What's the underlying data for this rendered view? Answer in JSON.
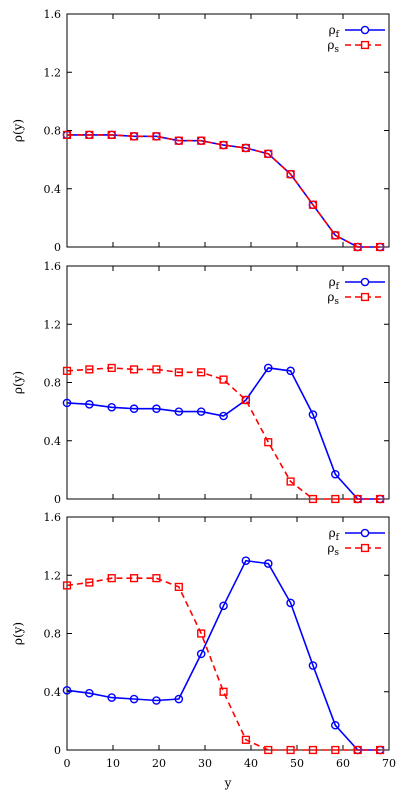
{
  "chart_data": [
    {
      "type": "line",
      "ylabel": "ρ(y)",
      "xlabel": "",
      "xlim": [
        0,
        70
      ],
      "ylim": [
        0,
        1.6
      ],
      "xticks": [
        0,
        10,
        20,
        30,
        40,
        50,
        60,
        70
      ],
      "yticks": [
        "0",
        "0.4",
        "0.8",
        "1.2",
        "1.6"
      ],
      "show_xticklabels": false,
      "grid": false,
      "legend_position": "top-right",
      "x": [
        0,
        4.86,
        9.72,
        14.58,
        19.44,
        24.31,
        29.17,
        34.03,
        38.89,
        43.75,
        48.61,
        53.47,
        58.33,
        63.19,
        68.06
      ],
      "series": [
        {
          "name": "ρf",
          "base": "ρ",
          "sub": "f",
          "color": "#0000ff",
          "marker": "circle",
          "dash": "solid",
          "values": [
            0.77,
            0.77,
            0.77,
            0.76,
            0.76,
            0.73,
            0.73,
            0.7,
            0.68,
            0.64,
            0.5,
            0.29,
            0.08,
            0.0,
            0.0
          ]
        },
        {
          "name": "ρs",
          "base": "ρ",
          "sub": "s",
          "color": "#ff0000",
          "marker": "square",
          "dash": "dashed",
          "values": [
            0.77,
            0.77,
            0.77,
            0.76,
            0.76,
            0.73,
            0.73,
            0.7,
            0.68,
            0.64,
            0.5,
            0.29,
            0.08,
            0.0,
            0.0
          ]
        }
      ]
    },
    {
      "type": "line",
      "ylabel": "ρ(y)",
      "xlabel": "",
      "xlim": [
        0,
        70
      ],
      "ylim": [
        0,
        1.6
      ],
      "xticks": [
        0,
        10,
        20,
        30,
        40,
        50,
        60,
        70
      ],
      "yticks": [
        "0",
        "0.4",
        "0.8",
        "1.2",
        "1.6"
      ],
      "show_xticklabels": false,
      "grid": false,
      "legend_position": "top-right",
      "x": [
        0,
        4.86,
        9.72,
        14.58,
        19.44,
        24.31,
        29.17,
        34.03,
        38.89,
        43.75,
        48.61,
        53.47,
        58.33,
        63.19,
        68.06
      ],
      "series": [
        {
          "name": "ρf",
          "base": "ρ",
          "sub": "f",
          "color": "#0000ff",
          "marker": "circle",
          "dash": "solid",
          "values": [
            0.66,
            0.65,
            0.63,
            0.62,
            0.62,
            0.6,
            0.6,
            0.57,
            0.68,
            0.9,
            0.88,
            0.58,
            0.17,
            0.0,
            0.0
          ]
        },
        {
          "name": "ρs",
          "base": "ρ",
          "sub": "s",
          "color": "#ff0000",
          "marker": "square",
          "dash": "dashed",
          "values": [
            0.88,
            0.89,
            0.9,
            0.89,
            0.89,
            0.87,
            0.87,
            0.82,
            0.68,
            0.39,
            0.12,
            0.0,
            0.0,
            0.0,
            0.0
          ]
        }
      ]
    },
    {
      "type": "line",
      "ylabel": "ρ(y)",
      "xlabel": "y",
      "xlim": [
        0,
        70
      ],
      "ylim": [
        0,
        1.6
      ],
      "xticks": [
        0,
        10,
        20,
        30,
        40,
        50,
        60,
        70
      ],
      "yticks": [
        "0",
        "0.4",
        "0.8",
        "1.2",
        "1.6"
      ],
      "show_xticklabels": true,
      "grid": false,
      "legend_position": "top-right",
      "x": [
        0,
        4.86,
        9.72,
        14.58,
        19.44,
        24.31,
        29.17,
        34.03,
        38.89,
        43.75,
        48.61,
        53.47,
        58.33,
        63.19,
        68.06
      ],
      "series": [
        {
          "name": "ρf",
          "base": "ρ",
          "sub": "f",
          "color": "#0000ff",
          "marker": "circle",
          "dash": "solid",
          "values": [
            0.41,
            0.39,
            0.36,
            0.35,
            0.34,
            0.35,
            0.66,
            0.99,
            1.3,
            1.28,
            1.01,
            0.58,
            0.17,
            0.0,
            0.0
          ]
        },
        {
          "name": "ρs",
          "base": "ρ",
          "sub": "s",
          "color": "#ff0000",
          "marker": "square",
          "dash": "dashed",
          "values": [
            1.13,
            1.15,
            1.18,
            1.18,
            1.18,
            1.12,
            0.8,
            0.4,
            0.07,
            0.0,
            0.0,
            0.0,
            0.0,
            0.0,
            0.0
          ]
        }
      ]
    }
  ]
}
